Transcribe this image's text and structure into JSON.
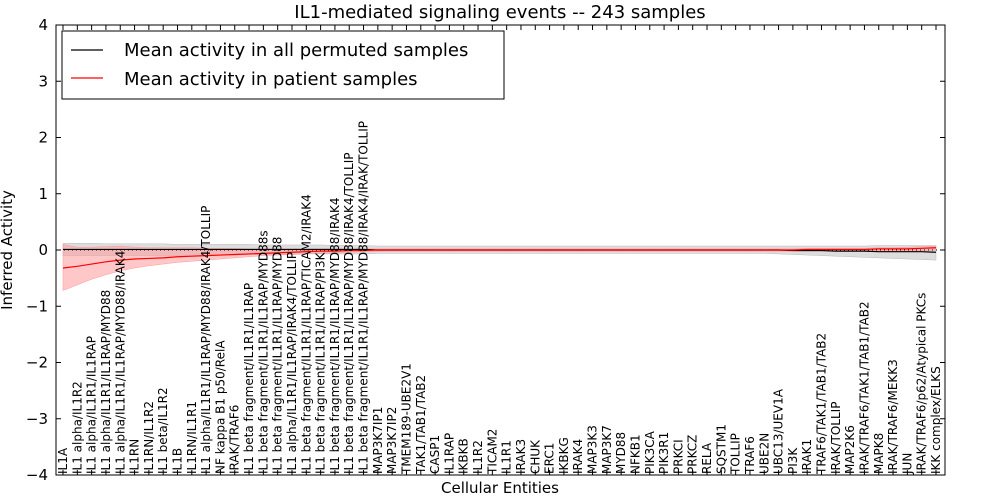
{
  "chart_data": {
    "type": "line",
    "title": "IL1-mediated signaling events -- 243 samples",
    "xlabel": "Cellular Entities",
    "ylabel": "Inferred Activity",
    "ylim": [
      -4,
      4
    ],
    "yticks": [
      4,
      3,
      2,
      1,
      0,
      -1,
      -2,
      -3,
      -4
    ],
    "ytick_labels": [
      "4",
      "3",
      "2",
      "1",
      "0",
      "−1",
      "−2",
      "−3",
      "−4"
    ],
    "legend_position": "top-left",
    "categories": [
      "IL1A",
      "IL1 alpha/IL1R2",
      "IL1 alpha/IL1R1/IL1RAP",
      "IL1 alpha/IL1R1/IL1RAP/MYD88",
      "IL1 alpha/IL1R1/IL1RAP/MYD88/IRAK4",
      "IL1RN",
      "IL1RN/IL1R2",
      "IL1 beta/IL1R2",
      "IL1B",
      "IL1RN/IL1R1",
      "IL1 alpha/IL1R1/IL1RAP/MYD88/IRAK4/TOLLIP",
      "NF kappa B1 p50/RelA",
      "IRAK/TRAF6",
      "IL1 beta fragment/IL1R1/IL1RAP",
      "IL1 beta fragment/IL1R1/IL1RAP/MYD88s",
      "IL1 beta fragment/IL1R1/IL1RAP/MYD88",
      "IL1 alpha/IL1R1/IL1RAP/IRAK4/TOLLIP",
      "IL1 beta fragment/IL1R1/IL1RAP/TICAM2/IRAK4",
      "IL1 beta fragment/IL1R1/IL1RAP/PI3K",
      "IL1 beta fragment/IL1R1/IL1RAP/MYD88/IRAK4",
      "IL1 beta fragment/IL1R1/IL1RAP/MYD88/IRAK4/TOLLIP",
      "IL1 beta fragment/IL1R1/IL1RAP/MYD88/IRAK4/IRAK/TOLLIP",
      "MAP3K7IP1",
      "MAP3K7IP2",
      "TMEM189-UBE2V1",
      "TAK1/TAB1/TAB2",
      "CASP1",
      "IL1RAP",
      "IKBKB",
      "IL1R2",
      "TICAM2",
      "IL1R1",
      "IRAK3",
      "CHUK",
      "ERC1",
      "IKBKG",
      "IRAK4",
      "MAP3K3",
      "MAP3K7",
      "MYD88",
      "NFKB1",
      "PIK3CA",
      "PIK3R1",
      "PRKCI",
      "PRKCZ",
      "RELA",
      "SQSTM1",
      "TOLLIP",
      "TRAF6",
      "UBE2N",
      "UBC13/UEV1A",
      "PI3K",
      "IRAK1",
      "TRAF6/TAK1/TAB1/TAB2",
      "IRAK/TOLLIP",
      "MAP2K6",
      "IRAK/TRAF6/TAK1/TAB1/TAB2",
      "MAPK8",
      "IRAK/TRAF6/MEKK3",
      "JUN",
      "IRAK/TRAF6/p62/Atypical PKCs",
      "IKK complex/ELKS"
    ],
    "series": [
      {
        "name": "Mean activity in all permuted samples",
        "color": "#000000",
        "band_color": "#bbbbbb",
        "values": [
          0.01,
          0.01,
          0.01,
          0.01,
          0.01,
          0.01,
          0.01,
          0.01,
          0.01,
          0.01,
          0.01,
          0.01,
          0.01,
          0.01,
          0.01,
          0.01,
          0.01,
          0.01,
          0.01,
          0.01,
          0.01,
          0.01,
          0.0,
          0.0,
          0.0,
          0.0,
          0.0,
          0.0,
          0.0,
          0.0,
          0.0,
          0.0,
          0.0,
          0.0,
          0.0,
          0.0,
          0.0,
          0.0,
          0.0,
          0.0,
          0.0,
          0.0,
          0.0,
          0.0,
          0.0,
          0.0,
          0.0,
          0.0,
          0.0,
          0.0,
          0.0,
          -0.01,
          -0.01,
          -0.01,
          -0.02,
          -0.02,
          -0.02,
          -0.03,
          -0.03,
          -0.03,
          -0.03,
          -0.04
        ],
        "lower": [
          -0.1,
          -0.1,
          -0.1,
          -0.1,
          -0.1,
          -0.1,
          -0.1,
          -0.1,
          -0.1,
          -0.09,
          -0.09,
          -0.09,
          -0.09,
          -0.08,
          -0.08,
          -0.08,
          -0.08,
          -0.07,
          -0.07,
          -0.07,
          -0.07,
          -0.07,
          -0.06,
          -0.06,
          -0.06,
          -0.06,
          -0.06,
          -0.06,
          -0.06,
          -0.06,
          -0.06,
          -0.06,
          -0.06,
          -0.06,
          -0.06,
          -0.06,
          -0.06,
          -0.06,
          -0.06,
          -0.06,
          -0.06,
          -0.06,
          -0.06,
          -0.06,
          -0.06,
          -0.06,
          -0.06,
          -0.06,
          -0.06,
          -0.06,
          -0.07,
          -0.08,
          -0.09,
          -0.1,
          -0.11,
          -0.12,
          -0.13,
          -0.14,
          -0.15,
          -0.16,
          -0.17,
          -0.18
        ],
        "upper": [
          0.12,
          0.12,
          0.12,
          0.11,
          0.11,
          0.11,
          0.11,
          0.11,
          0.1,
          0.1,
          0.1,
          0.1,
          0.1,
          0.1,
          0.09,
          0.09,
          0.09,
          0.09,
          0.09,
          0.08,
          0.08,
          0.08,
          0.07,
          0.07,
          0.07,
          0.07,
          0.07,
          0.07,
          0.07,
          0.07,
          0.07,
          0.07,
          0.07,
          0.07,
          0.07,
          0.07,
          0.07,
          0.07,
          0.07,
          0.07,
          0.07,
          0.07,
          0.07,
          0.07,
          0.07,
          0.07,
          0.07,
          0.07,
          0.07,
          0.07,
          0.07,
          0.07,
          0.07,
          0.07,
          0.07,
          0.07,
          0.07,
          0.08,
          0.08,
          0.08,
          0.08,
          0.08
        ]
      },
      {
        "name": "Mean activity in patient samples",
        "color": "#ff0000",
        "band_color": "#ff9999",
        "values": [
          -0.32,
          -0.29,
          -0.25,
          -0.21,
          -0.18,
          -0.16,
          -0.15,
          -0.14,
          -0.12,
          -0.11,
          -0.1,
          -0.09,
          -0.08,
          -0.07,
          -0.06,
          -0.05,
          -0.04,
          -0.03,
          -0.02,
          -0.02,
          -0.01,
          -0.01,
          0.0,
          0.0,
          0.0,
          0.0,
          0.0,
          0.0,
          0.0,
          0.0,
          0.0,
          0.0,
          0.0,
          0.0,
          0.0,
          0.0,
          0.0,
          0.0,
          0.0,
          0.0,
          0.0,
          0.0,
          0.0,
          0.0,
          0.0,
          0.0,
          0.0,
          0.0,
          0.0,
          0.0,
          0.0,
          0.0,
          0.01,
          0.01,
          0.01,
          0.01,
          0.01,
          0.02,
          0.02,
          0.02,
          0.03,
          0.04
        ],
        "lower": [
          -0.72,
          -0.62,
          -0.52,
          -0.44,
          -0.37,
          -0.32,
          -0.28,
          -0.25,
          -0.22,
          -0.2,
          -0.18,
          -0.16,
          -0.14,
          -0.12,
          -0.1,
          -0.09,
          -0.08,
          -0.07,
          -0.06,
          -0.05,
          -0.04,
          -0.03,
          -0.02,
          -0.02,
          -0.02,
          -0.02,
          -0.02,
          -0.02,
          -0.02,
          -0.02,
          -0.02,
          -0.02,
          -0.02,
          -0.02,
          -0.02,
          -0.02,
          -0.02,
          -0.02,
          -0.02,
          -0.02,
          -0.02,
          -0.02,
          -0.02,
          -0.02,
          -0.02,
          -0.02,
          -0.02,
          -0.02,
          -0.02,
          -0.02,
          -0.02,
          -0.02,
          -0.02,
          -0.02,
          -0.02,
          -0.02,
          -0.02,
          -0.02,
          -0.02,
          -0.01,
          -0.01,
          0.0
        ],
        "upper": [
          0.1,
          0.05,
          0.05,
          0.06,
          0.07,
          0.05,
          0.04,
          0.04,
          0.04,
          0.04,
          0.03,
          0.03,
          0.03,
          0.02,
          0.02,
          0.02,
          0.02,
          0.02,
          0.02,
          0.02,
          0.02,
          0.02,
          0.02,
          0.02,
          0.02,
          0.02,
          0.02,
          0.02,
          0.02,
          0.02,
          0.02,
          0.02,
          0.02,
          0.02,
          0.02,
          0.02,
          0.02,
          0.02,
          0.02,
          0.02,
          0.02,
          0.02,
          0.02,
          0.02,
          0.02,
          0.02,
          0.02,
          0.02,
          0.02,
          0.02,
          0.02,
          0.02,
          0.03,
          0.03,
          0.03,
          0.03,
          0.03,
          0.04,
          0.04,
          0.05,
          0.06,
          0.07
        ]
      }
    ]
  }
}
